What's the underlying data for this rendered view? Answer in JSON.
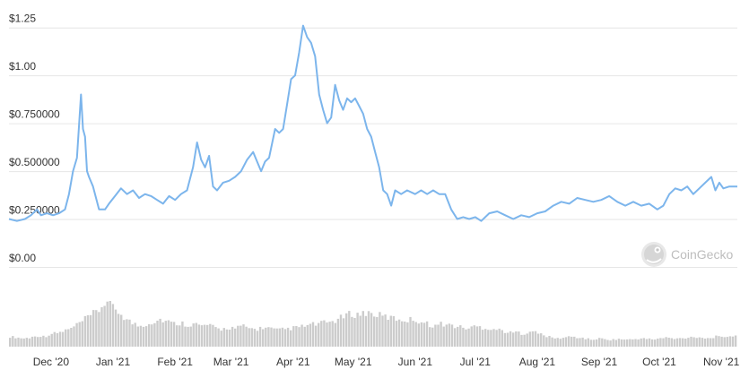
{
  "chart_data": {
    "type": "line",
    "title": "",
    "xlabel": "",
    "ylabel": "",
    "ylim": [
      0,
      1.3
    ],
    "y_ticks": [
      {
        "value": 0,
        "label": "$0.00"
      },
      {
        "value": 0.25,
        "label": "$0.250000"
      },
      {
        "value": 0.5,
        "label": "$0.500000"
      },
      {
        "value": 0.75,
        "label": "$0.750000"
      },
      {
        "value": 1.0,
        "label": "$1.00"
      },
      {
        "value": 1.25,
        "label": "$1.25"
      }
    ],
    "x_range": [
      "2020-11-10",
      "2021-11-09"
    ],
    "x_ticks": [
      {
        "date": "2020-12-01",
        "label": "Dec '20"
      },
      {
        "date": "2021-01-01",
        "label": "Jan '21"
      },
      {
        "date": "2021-02-01",
        "label": "Feb '21"
      },
      {
        "date": "2021-03-01",
        "label": "Mar '21"
      },
      {
        "date": "2021-04-01",
        "label": "Apr '21"
      },
      {
        "date": "2021-05-01",
        "label": "May '21"
      },
      {
        "date": "2021-06-01",
        "label": "Jun '21"
      },
      {
        "date": "2021-07-01",
        "label": "Jul '21"
      },
      {
        "date": "2021-08-01",
        "label": "Aug '21"
      },
      {
        "date": "2021-09-01",
        "label": "Sep '21"
      },
      {
        "date": "2021-10-01",
        "label": "Oct '21"
      },
      {
        "date": "2021-11-01",
        "label": "Nov '21"
      }
    ],
    "grid": true,
    "series": [
      {
        "color": "#7cb5ec",
        "points": [
          [
            "2020-11-10",
            0.25
          ],
          [
            "2020-11-14",
            0.24
          ],
          [
            "2020-11-18",
            0.25
          ],
          [
            "2020-11-21",
            0.27
          ],
          [
            "2020-11-24",
            0.3
          ],
          [
            "2020-11-26",
            0.27
          ],
          [
            "2020-11-29",
            0.28
          ],
          [
            "2020-12-02",
            0.27
          ],
          [
            "2020-12-05",
            0.28
          ],
          [
            "2020-12-08",
            0.3
          ],
          [
            "2020-12-10",
            0.38
          ],
          [
            "2020-12-12",
            0.5
          ],
          [
            "2020-12-14",
            0.57
          ],
          [
            "2020-12-16",
            0.9
          ],
          [
            "2020-12-17",
            0.72
          ],
          [
            "2020-12-18",
            0.68
          ],
          [
            "2020-12-19",
            0.5
          ],
          [
            "2020-12-20",
            0.47
          ],
          [
            "2020-12-22",
            0.42
          ],
          [
            "2020-12-25",
            0.3
          ],
          [
            "2020-12-28",
            0.3
          ],
          [
            "2020-12-30",
            0.33
          ],
          [
            "2021-01-02",
            0.37
          ],
          [
            "2021-01-05",
            0.41
          ],
          [
            "2021-01-08",
            0.38
          ],
          [
            "2021-01-11",
            0.4
          ],
          [
            "2021-01-14",
            0.36
          ],
          [
            "2021-01-17",
            0.38
          ],
          [
            "2021-01-20",
            0.37
          ],
          [
            "2021-01-23",
            0.35
          ],
          [
            "2021-01-26",
            0.33
          ],
          [
            "2021-01-29",
            0.37
          ],
          [
            "2021-02-01",
            0.35
          ],
          [
            "2021-02-04",
            0.38
          ],
          [
            "2021-02-07",
            0.4
          ],
          [
            "2021-02-10",
            0.52
          ],
          [
            "2021-02-12",
            0.65
          ],
          [
            "2021-02-14",
            0.56
          ],
          [
            "2021-02-16",
            0.52
          ],
          [
            "2021-02-18",
            0.58
          ],
          [
            "2021-02-20",
            0.42
          ],
          [
            "2021-02-22",
            0.4
          ],
          [
            "2021-02-25",
            0.44
          ],
          [
            "2021-02-28",
            0.45
          ],
          [
            "2021-03-03",
            0.47
          ],
          [
            "2021-03-06",
            0.5
          ],
          [
            "2021-03-09",
            0.56
          ],
          [
            "2021-03-12",
            0.6
          ],
          [
            "2021-03-14",
            0.55
          ],
          [
            "2021-03-16",
            0.5
          ],
          [
            "2021-03-18",
            0.55
          ],
          [
            "2021-03-20",
            0.57
          ],
          [
            "2021-03-23",
            0.72
          ],
          [
            "2021-03-25",
            0.7
          ],
          [
            "2021-03-27",
            0.72
          ],
          [
            "2021-03-29",
            0.85
          ],
          [
            "2021-03-31",
            0.98
          ],
          [
            "2021-04-02",
            1.0
          ],
          [
            "2021-04-04",
            1.12
          ],
          [
            "2021-04-06",
            1.26
          ],
          [
            "2021-04-08",
            1.2
          ],
          [
            "2021-04-10",
            1.17
          ],
          [
            "2021-04-12",
            1.1
          ],
          [
            "2021-04-14",
            0.9
          ],
          [
            "2021-04-16",
            0.82
          ],
          [
            "2021-04-18",
            0.75
          ],
          [
            "2021-04-20",
            0.78
          ],
          [
            "2021-04-22",
            0.95
          ],
          [
            "2021-04-24",
            0.87
          ],
          [
            "2021-04-26",
            0.82
          ],
          [
            "2021-04-28",
            0.88
          ],
          [
            "2021-04-30",
            0.86
          ],
          [
            "2021-05-02",
            0.88
          ],
          [
            "2021-05-04",
            0.84
          ],
          [
            "2021-05-06",
            0.8
          ],
          [
            "2021-05-08",
            0.72
          ],
          [
            "2021-05-10",
            0.68
          ],
          [
            "2021-05-12",
            0.6
          ],
          [
            "2021-05-14",
            0.52
          ],
          [
            "2021-05-16",
            0.4
          ],
          [
            "2021-05-18",
            0.38
          ],
          [
            "2021-05-20",
            0.32
          ],
          [
            "2021-05-22",
            0.4
          ],
          [
            "2021-05-25",
            0.38
          ],
          [
            "2021-05-28",
            0.4
          ],
          [
            "2021-06-01",
            0.38
          ],
          [
            "2021-06-04",
            0.4
          ],
          [
            "2021-06-07",
            0.38
          ],
          [
            "2021-06-10",
            0.4
          ],
          [
            "2021-06-13",
            0.38
          ],
          [
            "2021-06-16",
            0.38
          ],
          [
            "2021-06-19",
            0.3
          ],
          [
            "2021-06-22",
            0.25
          ],
          [
            "2021-06-25",
            0.26
          ],
          [
            "2021-06-28",
            0.25
          ],
          [
            "2021-07-01",
            0.26
          ],
          [
            "2021-07-04",
            0.24
          ],
          [
            "2021-07-08",
            0.28
          ],
          [
            "2021-07-12",
            0.29
          ],
          [
            "2021-07-16",
            0.27
          ],
          [
            "2021-07-20",
            0.25
          ],
          [
            "2021-07-24",
            0.27
          ],
          [
            "2021-07-28",
            0.26
          ],
          [
            "2021-08-01",
            0.28
          ],
          [
            "2021-08-05",
            0.29
          ],
          [
            "2021-08-09",
            0.32
          ],
          [
            "2021-08-13",
            0.34
          ],
          [
            "2021-08-17",
            0.33
          ],
          [
            "2021-08-21",
            0.36
          ],
          [
            "2021-08-25",
            0.35
          ],
          [
            "2021-08-29",
            0.34
          ],
          [
            "2021-09-02",
            0.35
          ],
          [
            "2021-09-06",
            0.37
          ],
          [
            "2021-09-10",
            0.34
          ],
          [
            "2021-09-14",
            0.32
          ],
          [
            "2021-09-18",
            0.34
          ],
          [
            "2021-09-22",
            0.32
          ],
          [
            "2021-09-26",
            0.33
          ],
          [
            "2021-09-30",
            0.3
          ],
          [
            "2021-10-03",
            0.32
          ],
          [
            "2021-10-06",
            0.38
          ],
          [
            "2021-10-09",
            0.41
          ],
          [
            "2021-10-12",
            0.4
          ],
          [
            "2021-10-15",
            0.42
          ],
          [
            "2021-10-18",
            0.38
          ],
          [
            "2021-10-21",
            0.41
          ],
          [
            "2021-10-24",
            0.44
          ],
          [
            "2021-10-27",
            0.47
          ],
          [
            "2021-10-29",
            0.4
          ],
          [
            "2021-10-31",
            0.44
          ],
          [
            "2021-11-02",
            0.41
          ],
          [
            "2021-11-05",
            0.42
          ],
          [
            "2021-11-09",
            0.42
          ]
        ]
      }
    ],
    "volume": {
      "color": "#cccccc",
      "ylim": [
        0,
        1
      ],
      "values": [
        [
          0.22,
          0.2,
          0.18,
          0.2,
          0.24,
          0.22,
          0.28,
          0.3,
          0.35,
          0.4,
          0.5,
          0.6,
          0.7,
          0.8,
          1.0,
          0.85,
          0.75,
          0.6
        ],
        [
          0.5,
          0.45,
          0.5,
          0.55,
          0.6,
          0.55,
          0.5,
          0.52,
          0.48,
          0.5,
          0.45,
          0.48
        ],
        [
          0.4,
          0.38,
          0.42,
          0.4,
          0.45,
          0.4,
          0.38,
          0.42,
          0.4
        ],
        [
          0.36,
          0.38,
          0.4,
          0.42,
          0.45,
          0.48,
          0.5,
          0.52,
          0.55,
          0.6,
          0.68,
          0.72,
          0.7,
          0.75,
          0.72,
          0.68
        ],
        [
          0.65,
          0.62,
          0.6,
          0.58,
          0.6,
          0.55,
          0.5,
          0.45,
          0.5,
          0.48,
          0.45,
          0.42,
          0.4
        ],
        [
          0.45,
          0.42,
          0.4,
          0.38,
          0.35,
          0.3,
          0.32,
          0.28,
          0.35,
          0.3,
          0.25
        ],
        [
          0.2,
          0.18,
          0.2,
          0.22,
          0.2,
          0.18,
          0.15,
          0.18,
          0.16,
          0.15,
          0.17,
          0.15,
          0.16,
          0.18,
          0.17,
          0.16,
          0.18,
          0.2,
          0.17,
          0.18,
          0.2,
          0.22,
          0.2,
          0.18,
          0.22,
          0.2,
          0.24,
          0.22
        ]
      ]
    }
  },
  "watermark": {
    "text": "CoinGecko",
    "icon": "gecko-logo-icon"
  }
}
